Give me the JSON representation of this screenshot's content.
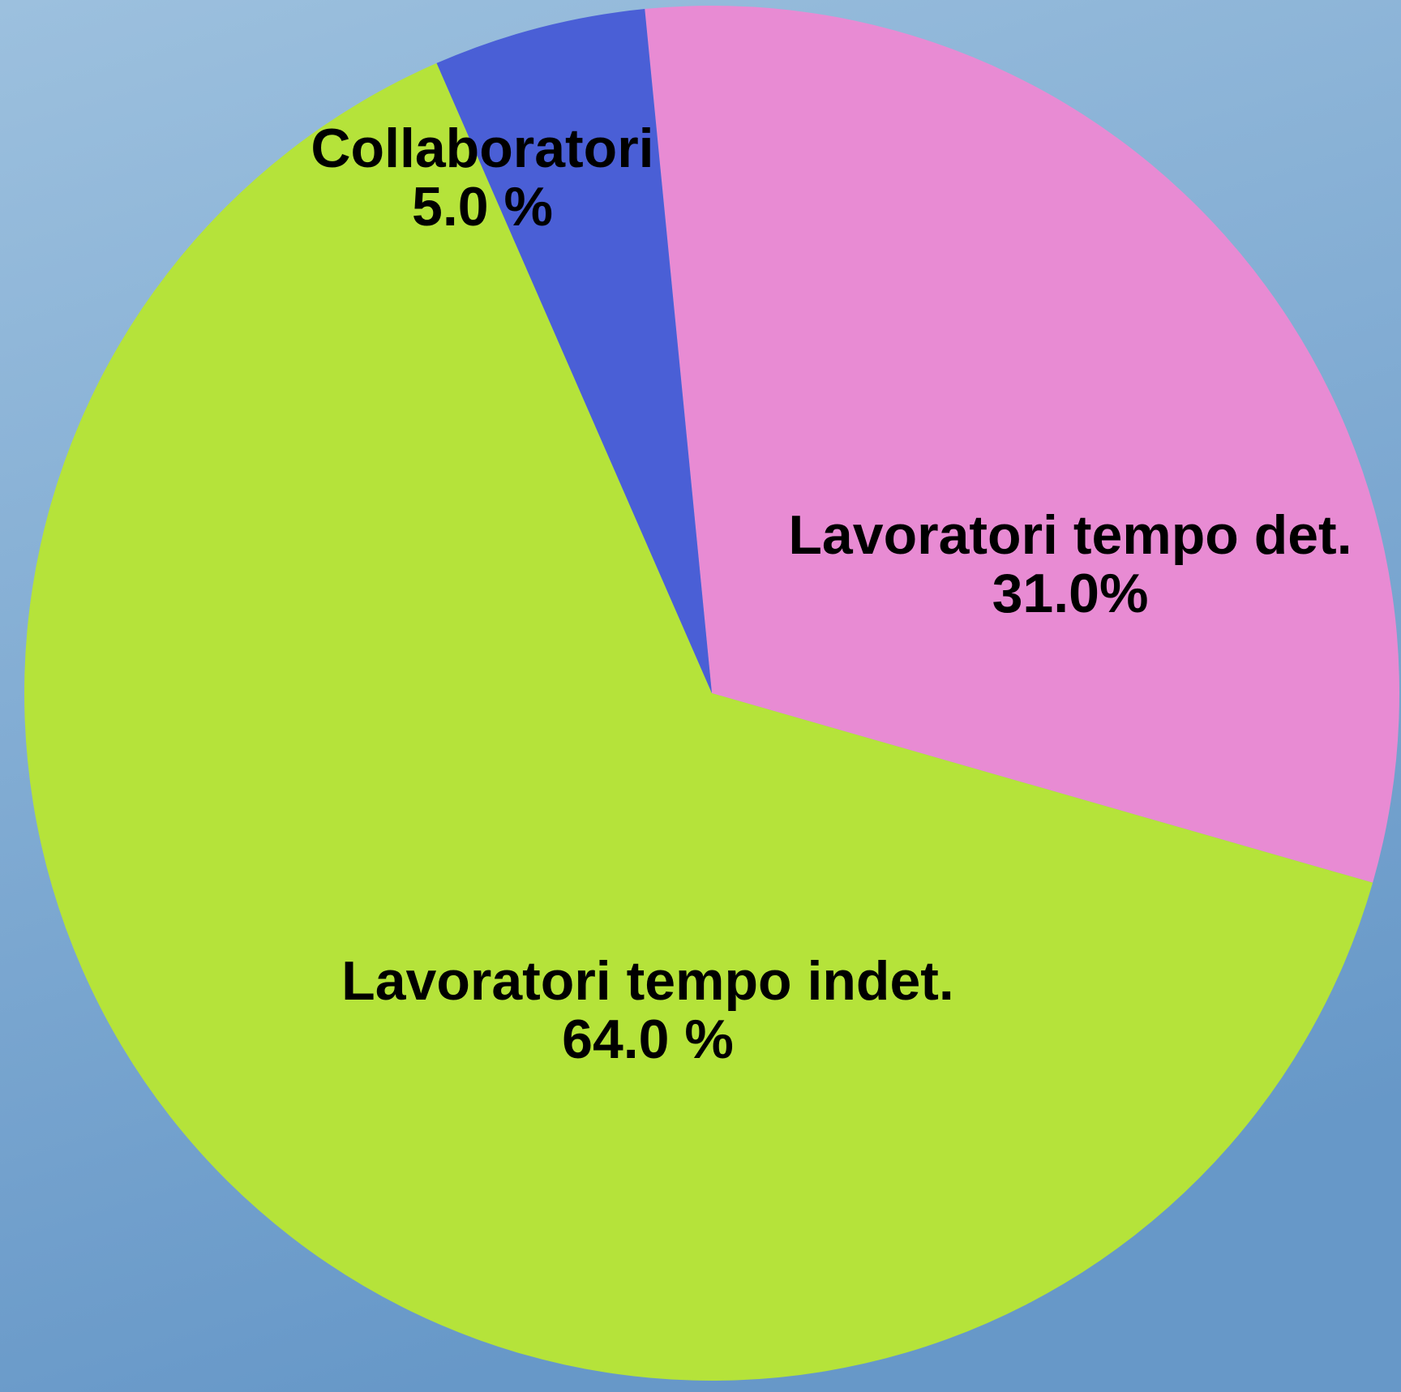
{
  "chart_data": {
    "type": "pie",
    "categories": [
      "Lavoratori tempo det.",
      "Lavoratori tempo indet.",
      "Collaboratori"
    ],
    "values": [
      31.0,
      64.0,
      5.0
    ],
    "value_labels": [
      "31.0%",
      "64.0 %",
      "5.0 %"
    ],
    "colors": [
      "#e88bd3",
      "#b5e33a",
      "#4a5fd6"
    ]
  }
}
